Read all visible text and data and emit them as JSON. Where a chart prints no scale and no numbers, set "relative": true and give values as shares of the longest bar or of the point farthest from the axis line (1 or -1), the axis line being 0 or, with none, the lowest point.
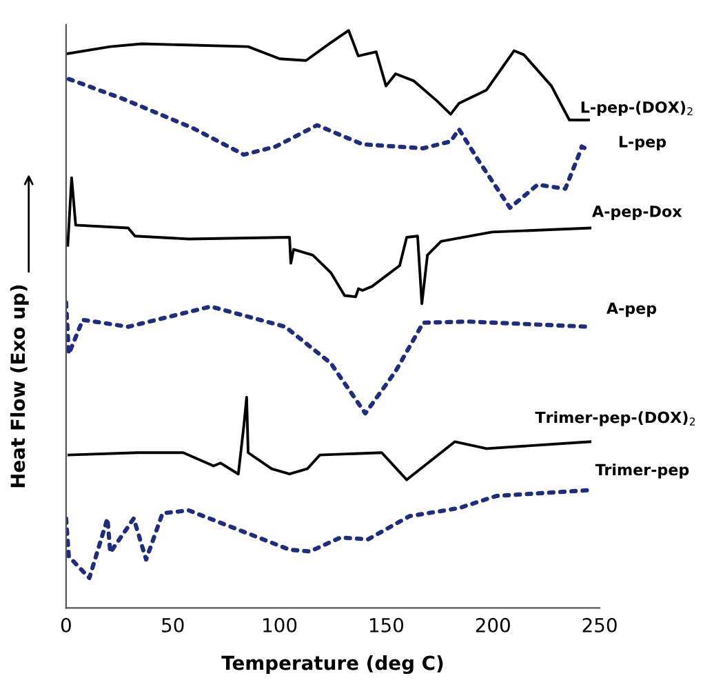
{
  "chart_data": {
    "type": "line",
    "relative": true,
    "xlabel": "Temperature (deg C)",
    "ylabel": "Heat Flow (Exo up)",
    "xlim": [
      0,
      250
    ],
    "xticks": [
      0,
      50,
      100,
      150,
      200,
      250
    ],
    "grid": false,
    "legend": false,
    "marker": "none",
    "series": [
      {
        "name": "L-pep-(DOX)$_{2}$",
        "color": "#000000",
        "line_style": "solid",
        "x": [
          0.8,
          20.7,
          35.5,
          85.3,
          100.1,
          112.4,
          124.0,
          132.4,
          136.9,
          145.3,
          149.9,
          154.4,
          162.8,
          173.8,
          180.2,
          184.1,
          197.0,
          209.9,
          214.5,
          227.4,
          235.8,
          244.8
        ],
        "values": [
          0.96,
          0.972,
          0.977,
          0.972,
          0.951,
          0.948,
          0.979,
          1.0,
          0.956,
          0.963,
          0.904,
          0.925,
          0.913,
          0.878,
          0.855,
          0.874,
          0.897,
          0.965,
          0.958,
          0.904,
          0.845,
          0.845
        ]
      },
      {
        "name": "L-pep",
        "color": "#1f2d7a",
        "line_style": "dotted",
        "x": [
          1.3,
          27.1,
          59.4,
          83.3,
          98.2,
          117.6,
          138.9,
          167.3,
          180.2,
          184.1,
          193.2,
          208.0,
          220.9,
          233.9,
          240.3,
          241.6,
          245.5
        ],
        "values": [
          0.916,
          0.881,
          0.831,
          0.785,
          0.799,
          0.836,
          0.803,
          0.796,
          0.808,
          0.829,
          0.775,
          0.693,
          0.733,
          0.726,
          0.785,
          0.799,
          0.792
        ]
      },
      {
        "name": "A-pep-Dox",
        "color": "#000000",
        "line_style": "solid",
        "x": [
          0.8,
          2.6,
          4.5,
          29.1,
          32.3,
          57.5,
          104.7,
          105.3,
          106.6,
          115.6,
          124.0,
          130.5,
          135.7,
          137.0,
          138.9,
          143.4,
          156.3,
          159.6,
          164.7,
          166.7,
          169.3,
          175.7,
          199.6,
          245.5
        ],
        "values": [
          0.628,
          0.745,
          0.663,
          0.658,
          0.644,
          0.639,
          0.642,
          0.597,
          0.621,
          0.611,
          0.581,
          0.541,
          0.539,
          0.553,
          0.55,
          0.557,
          0.593,
          0.642,
          0.644,
          0.527,
          0.611,
          0.635,
          0.651,
          0.658
        ]
      },
      {
        "name": "A-pep",
        "color": "#1f2d7a",
        "line_style": "dotted",
        "x": [
          0,
          1.3,
          7.8,
          29.1,
          67.8,
          102.7,
          124.0,
          140.2,
          154.4,
          167.3,
          188.6,
          244.8
        ],
        "values": [
          0.529,
          0.44,
          0.499,
          0.487,
          0.522,
          0.487,
          0.424,
          0.337,
          0.41,
          0.494,
          0.496,
          0.487
        ]
      },
      {
        "name": "Trimer-pep-(DOX)$_{2}$",
        "color": "#000000",
        "line_style": "solid",
        "x": [
          1.3,
          33.6,
          54.9,
          69.1,
          72.4,
          80.7,
          83.3,
          84.6,
          85.3,
          96.3,
          104.7,
          113.0,
          118.9,
          147.9,
          159.6,
          182.2,
          197.0,
          245.5
        ],
        "values": [
          0.265,
          0.269,
          0.269,
          0.246,
          0.251,
          0.232,
          0.316,
          0.365,
          0.269,
          0.241,
          0.232,
          0.241,
          0.265,
          0.269,
          0.222,
          0.288,
          0.276,
          0.288
        ]
      },
      {
        "name": "Trimer-pep",
        "color": "#1f2d7a",
        "line_style": "dotted",
        "x": [
          0,
          1.3,
          10.9,
          19.4,
          20.7,
          31.7,
          37.5,
          45.2,
          57.5,
          104.7,
          114.3,
          128.6,
          141.5,
          160.9,
          184.1,
          201.6,
          244.8
        ],
        "values": [
          0.155,
          0.089,
          0.052,
          0.155,
          0.096,
          0.155,
          0.084,
          0.164,
          0.169,
          0.101,
          0.098,
          0.122,
          0.119,
          0.159,
          0.173,
          0.194,
          0.204
        ]
      }
    ]
  }
}
